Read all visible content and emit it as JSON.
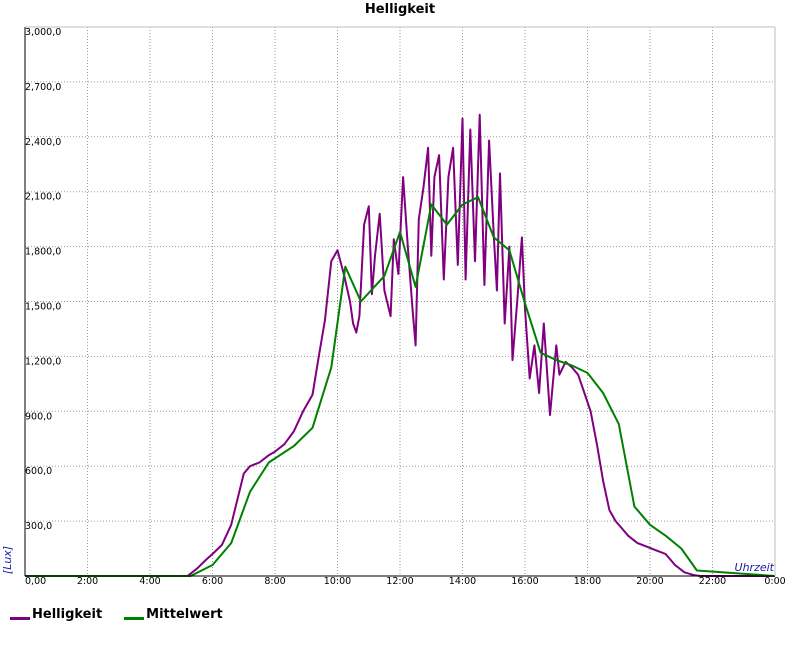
{
  "chart_data": {
    "type": "line",
    "title": "Helligkeit",
    "xlabel": "Uhrzeit",
    "ylabel": "[Lux]",
    "x_unit": "hours",
    "xlim": [
      0,
      24
    ],
    "ylim": [
      0,
      3000
    ],
    "x_ticks": [
      0,
      2,
      4,
      6,
      8,
      10,
      12,
      14,
      16,
      18,
      20,
      22,
      24
    ],
    "x_tick_labels": [
      "0:00",
      "2:00",
      "4:00",
      "6:00",
      "8:00",
      "10:00",
      "12:00",
      "14:00",
      "16:00",
      "18:00",
      "20:00",
      "22:00",
      "0:00"
    ],
    "y_ticks": [
      300,
      600,
      900,
      1200,
      1500,
      1800,
      2100,
      2400,
      2700,
      3000
    ],
    "y_tick_labels": [
      "300,0",
      "600,0",
      "900,0",
      "1,200,0",
      "1,500,0",
      "1,800,0",
      "2,100,0",
      "2,400,0",
      "2,700,0",
      "3,000,0"
    ],
    "x_zero_label": "0,00",
    "grid": true,
    "legend_position": "bottom-left",
    "series": [
      {
        "name": "Helligkeit",
        "color": "#800080",
        "x": [
          0,
          5.2,
          5.5,
          5.8,
          6.0,
          6.3,
          6.6,
          6.8,
          7.0,
          7.2,
          7.5,
          7.8,
          8.0,
          8.3,
          8.6,
          8.9,
          9.2,
          9.4,
          9.6,
          9.8,
          10.0,
          10.2,
          10.4,
          10.5,
          10.6,
          10.7,
          10.85,
          11.0,
          11.1,
          11.2,
          11.35,
          11.5,
          11.7,
          11.8,
          11.95,
          12.1,
          12.25,
          12.4,
          12.5,
          12.6,
          12.75,
          12.9,
          13.0,
          13.1,
          13.25,
          13.4,
          13.55,
          13.7,
          13.85,
          14.0,
          14.1,
          14.25,
          14.4,
          14.55,
          14.7,
          14.85,
          15.0,
          15.1,
          15.2,
          15.35,
          15.5,
          15.6,
          15.75,
          15.9,
          16.0,
          16.15,
          16.3,
          16.45,
          16.6,
          16.8,
          17.0,
          17.1,
          17.3,
          17.5,
          17.7,
          17.9,
          18.1,
          18.3,
          18.5,
          18.7,
          18.9,
          19.1,
          19.3,
          19.6,
          19.9,
          20.2,
          20.5,
          20.8,
          21.1,
          21.4,
          21.6,
          24
        ],
        "y": [
          0,
          0,
          40,
          90,
          120,
          170,
          280,
          420,
          560,
          600,
          620,
          660,
          680,
          720,
          790,
          900,
          990,
          1200,
          1400,
          1720,
          1780,
          1650,
          1500,
          1380,
          1330,
          1420,
          1920,
          2020,
          1540,
          1750,
          1980,
          1560,
          1420,
          1840,
          1650,
          2180,
          1800,
          1460,
          1260,
          1950,
          2120,
          2340,
          1750,
          2180,
          2300,
          1620,
          2180,
          2340,
          1700,
          2500,
          1620,
          2440,
          1720,
          2520,
          1590,
          2380,
          1860,
          1560,
          2200,
          1380,
          1800,
          1180,
          1500,
          1850,
          1460,
          1080,
          1260,
          1000,
          1380,
          880,
          1260,
          1100,
          1170,
          1140,
          1100,
          1000,
          900,
          720,
          520,
          360,
          300,
          260,
          220,
          180,
          160,
          140,
          120,
          60,
          20,
          5,
          0,
          0
        ]
      },
      {
        "name": "Mittelwert",
        "color": "#008000",
        "x": [
          0,
          5.3,
          6.0,
          6.6,
          7.2,
          7.8,
          8.6,
          9.2,
          9.8,
          10.25,
          10.75,
          11.5,
          12.0,
          12.5,
          13.0,
          13.5,
          14.0,
          14.5,
          15.0,
          15.5,
          16.0,
          16.5,
          17.0,
          17.5,
          18.0,
          18.5,
          19.0,
          19.5,
          20.0,
          20.5,
          21.0,
          21.5,
          24
        ],
        "y": [
          0,
          0,
          60,
          180,
          460,
          620,
          710,
          810,
          1140,
          1690,
          1500,
          1640,
          1880,
          1580,
          2030,
          1920,
          2030,
          2070,
          1850,
          1780,
          1490,
          1220,
          1180,
          1150,
          1110,
          1000,
          830,
          380,
          280,
          220,
          150,
          30,
          0
        ]
      }
    ]
  }
}
